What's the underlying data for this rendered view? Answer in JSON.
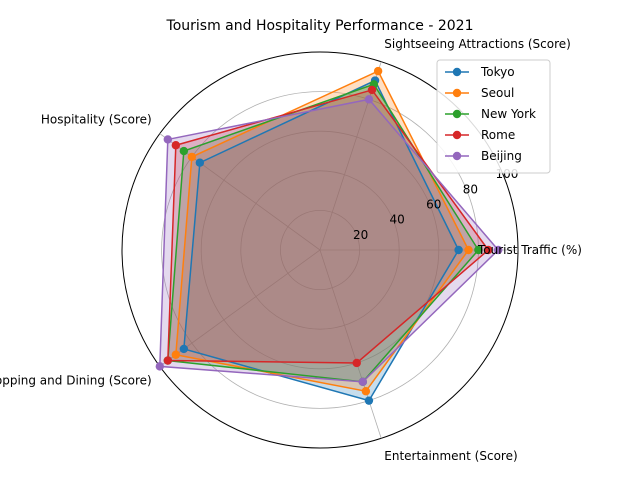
{
  "chart_data": {
    "type": "radar",
    "title": "Tourism and Hospitality Performance - 2021",
    "categories": [
      "Tourist Traffic (%)",
      "Sightseeing Attractions (Score)",
      "Hospitality (Score)",
      "Shopping and Dining (Score)",
      "Entertainment (Score)"
    ],
    "series": [
      {
        "name": "Tokyo",
        "color": "#1f77b4",
        "values": [
          70,
          90,
          75,
          85,
          80
        ]
      },
      {
        "name": "Seoul",
        "color": "#ff7f0e",
        "values": [
          75,
          95,
          80,
          90,
          75
        ]
      },
      {
        "name": "New York",
        "color": "#2ca02c",
        "values": [
          80,
          88,
          85,
          95,
          70
        ]
      },
      {
        "name": "Rome",
        "color": "#d62728",
        "values": [
          85,
          85,
          90,
          95,
          60
        ]
      },
      {
        "name": "Beijing",
        "color": "#9467bd",
        "values": [
          90,
          80,
          95,
          100,
          70
        ]
      }
    ],
    "r_ticks": [
      20,
      40,
      60,
      80,
      100
    ],
    "r_range": [
      0,
      100
    ],
    "grid": true,
    "legend_position": "top-right"
  }
}
